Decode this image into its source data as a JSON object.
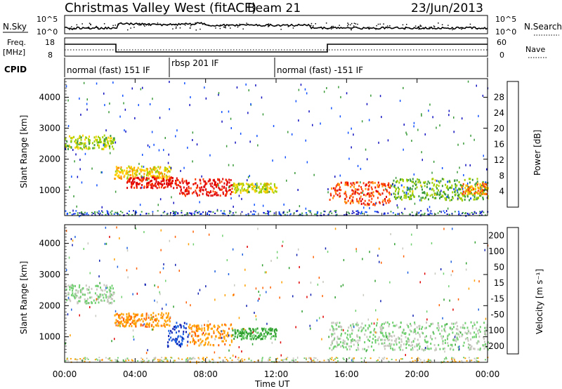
{
  "header": {
    "station": "Christmas Valley West (fitACF)",
    "beam": "Beam 21",
    "date": "23/Jun/2013"
  },
  "noise_panel": {
    "left_label": "N.Sky",
    "right_label": "N.Search",
    "left_ticks": [
      "10^5",
      "10^0"
    ],
    "right_ticks": [
      "10^5",
      "10^0"
    ]
  },
  "freq_panel": {
    "left_label_line1": "Freq.",
    "left_label_line2": "[MHz]",
    "right_label": "Nave",
    "left_ticks": [
      "18",
      "8"
    ],
    "right_ticks": [
      "60",
      "0"
    ]
  },
  "cpid": {
    "label": "CPID",
    "segments": [
      {
        "label": "normal (fast) 151 IF",
        "start_hour": 0,
        "end_hour": 6
      },
      {
        "label": "rbsp 201 IF",
        "start_hour": 6,
        "end_hour": 12
      },
      {
        "label": "normal (fast) -151 IF",
        "start_hour": 12,
        "end_hour": 24
      }
    ]
  },
  "x_axis": {
    "label": "Time UT",
    "ticks": [
      "00:00",
      "04:00",
      "08:00",
      "12:00",
      "16:00",
      "20:00",
      "00:00"
    ]
  },
  "chart_data": [
    {
      "type": "heatmap",
      "title": "Power",
      "ylabel": "Slant Range [km]",
      "xlabel": "Time UT",
      "xlim": [
        0,
        24
      ],
      "ylim": [
        180,
        4600
      ],
      "yticks": [
        "1000",
        "2000",
        "3000",
        "4000"
      ],
      "colorbar": {
        "label": "Power [dB]",
        "ticks": [
          "28",
          "24",
          "20",
          "16",
          "12",
          "8",
          "4"
        ],
        "colors": [
          "#e00000",
          "#ff4000",
          "#ff9000",
          "#ffd000",
          "#a0d000",
          "#3a9a3a",
          "#1050ff",
          "#1010c0"
        ]
      },
      "echo_regions": [
        {
          "t0": 0.0,
          "t1": 2.8,
          "r0": 2350,
          "r1": 2800,
          "level": 12
        },
        {
          "t0": 2.8,
          "t1": 6.0,
          "r0": 1400,
          "r1": 1800,
          "level": 16
        },
        {
          "t0": 3.5,
          "t1": 6.5,
          "r0": 1100,
          "r1": 1450,
          "level": 28
        },
        {
          "t0": 6.5,
          "t1": 9.5,
          "r0": 850,
          "r1": 1400,
          "level": 28
        },
        {
          "t0": 9.5,
          "t1": 12.0,
          "r0": 950,
          "r1": 1250,
          "level": 14
        },
        {
          "t0": 15.0,
          "t1": 18.5,
          "r0": 550,
          "r1": 1300,
          "level": 24
        },
        {
          "t0": 18.5,
          "t1": 24.0,
          "r0": 700,
          "r1": 1400,
          "level": 10
        },
        {
          "t0": 22.5,
          "t1": 24.0,
          "r0": 900,
          "r1": 1250,
          "level": 20
        }
      ]
    },
    {
      "type": "heatmap",
      "title": "Velocity",
      "ylabel": "Slant Range [km]",
      "xlabel": "Time UT",
      "xlim": [
        0,
        24
      ],
      "ylim": [
        180,
        4600
      ],
      "yticks": [
        "1000",
        "2000",
        "3000",
        "4000"
      ],
      "colorbar": {
        "label": "Velocity [m s⁻¹]",
        "ticks": [
          "200",
          "100",
          "50",
          "15",
          "-15",
          "-50",
          "-100",
          "-200"
        ],
        "colors": [
          "#1020b0",
          "#1c60e0",
          "#30a030",
          "#70d070",
          "#c8c8c0",
          "#ffa000",
          "#ff6000",
          "#e00000"
        ]
      },
      "echo_regions": [
        {
          "t0": 0.0,
          "t1": 2.8,
          "r0": 2100,
          "r1": 2700,
          "velocity": 0
        },
        {
          "t0": 2.8,
          "t1": 6.0,
          "r0": 1350,
          "r1": 1800,
          "velocity": -60
        },
        {
          "t0": 5.8,
          "t1": 7.0,
          "r0": 700,
          "r1": 1500,
          "velocity": 150
        },
        {
          "t0": 7.0,
          "t1": 9.5,
          "r0": 750,
          "r1": 1450,
          "velocity": -60
        },
        {
          "t0": 9.5,
          "t1": 12.0,
          "r0": 950,
          "r1": 1300,
          "velocity": 40
        },
        {
          "t0": 15.0,
          "t1": 24.0,
          "r0": 600,
          "r1": 1500,
          "velocity": 0
        }
      ]
    }
  ]
}
